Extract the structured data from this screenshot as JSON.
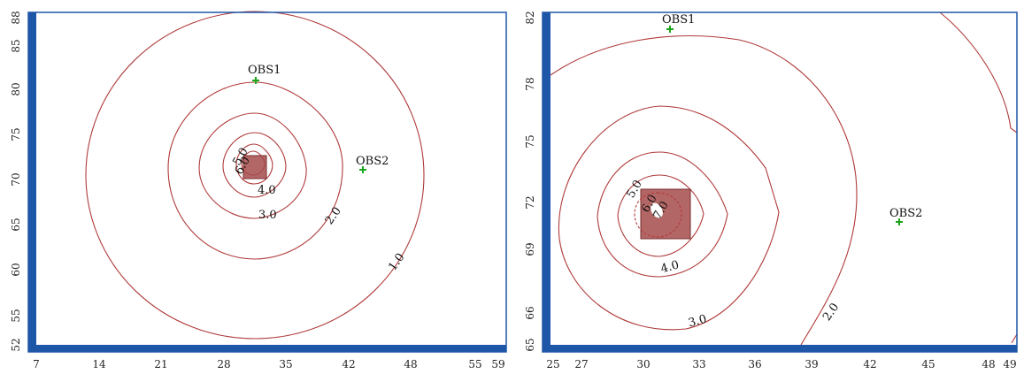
{
  "panels": [
    {
      "id": "left",
      "x_ticks": [
        "7",
        "14",
        "21",
        "28",
        "35",
        "42",
        "48",
        "55",
        "59"
      ],
      "y_ticks": [
        "52",
        "55",
        "60",
        "65",
        "70",
        "75",
        "80",
        "85",
        "88"
      ],
      "observations": [
        {
          "label": "OBS1",
          "x": 31.5,
          "y": 80.8
        },
        {
          "label": "OBS2",
          "x": 43,
          "y": 70.8
        }
      ],
      "source": {
        "x": 31.5,
        "y": 71
      },
      "contour_labels": [
        "6.0",
        "5.0",
        "4.0",
        "3.0",
        "2.0",
        "1.0"
      ]
    },
    {
      "id": "right",
      "x_ticks": [
        "25",
        "27",
        "30",
        "33",
        "36",
        "39",
        "42",
        "45",
        "48",
        "49"
      ],
      "y_ticks": [
        "65",
        "66",
        "69",
        "72",
        "75",
        "78",
        "82"
      ],
      "observations": [
        {
          "label": "OBS1",
          "x": 31.5,
          "y": 81.3
        },
        {
          "label": "OBS2",
          "x": 43.3,
          "y": 70.8
        }
      ],
      "source": {
        "x": 31,
        "y": 71
      },
      "contour_labels": [
        "7.0",
        "6.0",
        "5.0",
        "4.0",
        "3.0",
        "2.0"
      ]
    }
  ],
  "colors": {
    "frame": "#1f57a8",
    "contour": "#b03a3a",
    "source": "#a64b4b",
    "obs": "#1aa51a"
  }
}
